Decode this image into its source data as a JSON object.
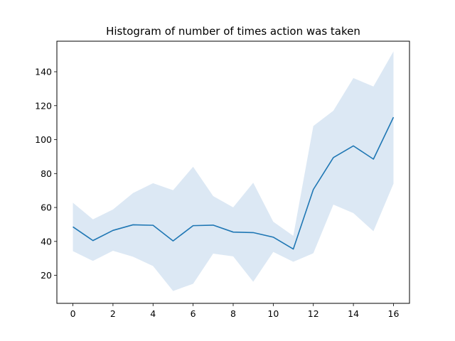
{
  "chart_data": {
    "type": "line",
    "title": "Histogram of number of times action was taken",
    "xlabel": "",
    "ylabel": "",
    "xlim": [
      -0.8,
      16.8
    ],
    "ylim": [
      3.5,
      158
    ],
    "xticks": [
      0,
      2,
      4,
      6,
      8,
      10,
      12,
      14,
      16
    ],
    "yticks": [
      20,
      40,
      60,
      80,
      100,
      120,
      140
    ],
    "x": [
      0,
      1,
      2,
      3,
      4,
      5,
      6,
      7,
      8,
      9,
      10,
      11,
      12,
      13,
      14,
      15,
      16
    ],
    "series": [
      {
        "values": [
          48.6,
          40.5,
          46.5,
          49.8,
          49.5,
          40.3,
          49.3,
          49.6,
          45.5,
          45.2,
          42.5,
          35.5,
          70.6,
          89.4,
          96.3,
          88.5,
          113.2
        ],
        "lower": [
          34.3,
          28.5,
          34.5,
          31.0,
          25.5,
          10.8,
          15.0,
          32.8,
          31.2,
          16.2,
          33.8,
          28.0,
          33.0,
          61.7,
          56.7,
          46.0,
          74.0
        ],
        "upper": [
          62.8,
          53.0,
          58.8,
          68.5,
          74.3,
          70.2,
          84.0,
          66.7,
          60.1,
          74.6,
          51.6,
          43.3,
          108.0,
          117.0,
          136.3,
          131.3,
          152.0
        ],
        "color": "#1f77b4",
        "band_color": "#dce8f4"
      }
    ],
    "grid": false,
    "legend": "none"
  }
}
